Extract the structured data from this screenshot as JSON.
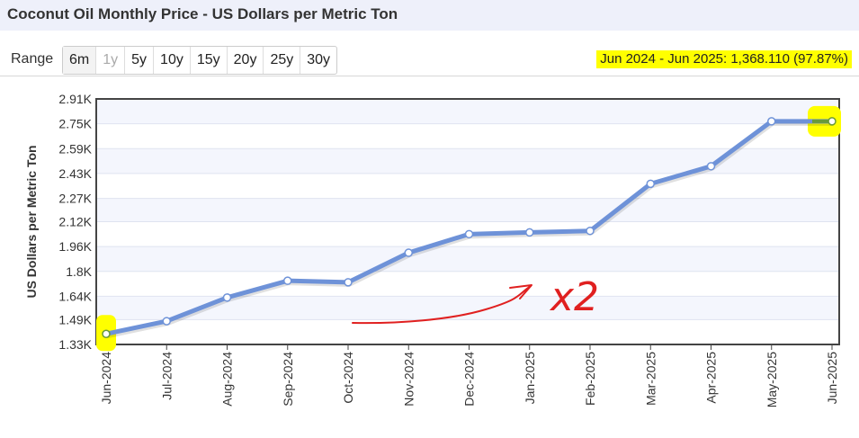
{
  "title": "Coconut Oil Monthly Price - US Dollars per Metric Ton",
  "range": {
    "label": "Range",
    "options": [
      "6m",
      "1y",
      "5y",
      "10y",
      "15y",
      "20y",
      "25y",
      "30y"
    ],
    "disabled": "1y"
  },
  "summary": "Jun 2024 - Jun 2025: 1,368.110 (97.87%)",
  "colors": {
    "line": "#6e92d8",
    "highlight": "#ffff00",
    "annotation": "#e02020",
    "plot_bg": "#f4f6fd"
  },
  "annotation": {
    "text": "x2"
  },
  "chart_data": {
    "type": "line",
    "ylabel": "US Dollars per Metric Ton",
    "xlabel": "",
    "ylim": [
      1330,
      2910
    ],
    "y_ticks": [
      "1.33K",
      "1.49K",
      "1.64K",
      "1.8K",
      "1.96K",
      "2.12K",
      "2.27K",
      "2.43K",
      "2.59K",
      "2.75K",
      "2.91K"
    ],
    "y_tick_values": [
      1330,
      1490,
      1640,
      1800,
      1960,
      2120,
      2270,
      2430,
      2590,
      2750,
      2910
    ],
    "categories": [
      "Jun-2024",
      "Jul-2024",
      "Aug-2024",
      "Sep-2024",
      "Oct-2024",
      "Nov-2024",
      "Dec-2024",
      "Jan-2025",
      "Feb-2025",
      "Mar-2025",
      "Apr-2025",
      "May-2025",
      "Jun-2025"
    ],
    "series": [
      {
        "values": [
          1398,
          1480,
          1632,
          1740,
          1730,
          1920,
          2040,
          2051,
          2061,
          2364,
          2477,
          2766,
          2766
        ]
      }
    ],
    "grid": true,
    "highlighted_points": [
      "Jun-2024",
      "Jun-2025"
    ]
  }
}
